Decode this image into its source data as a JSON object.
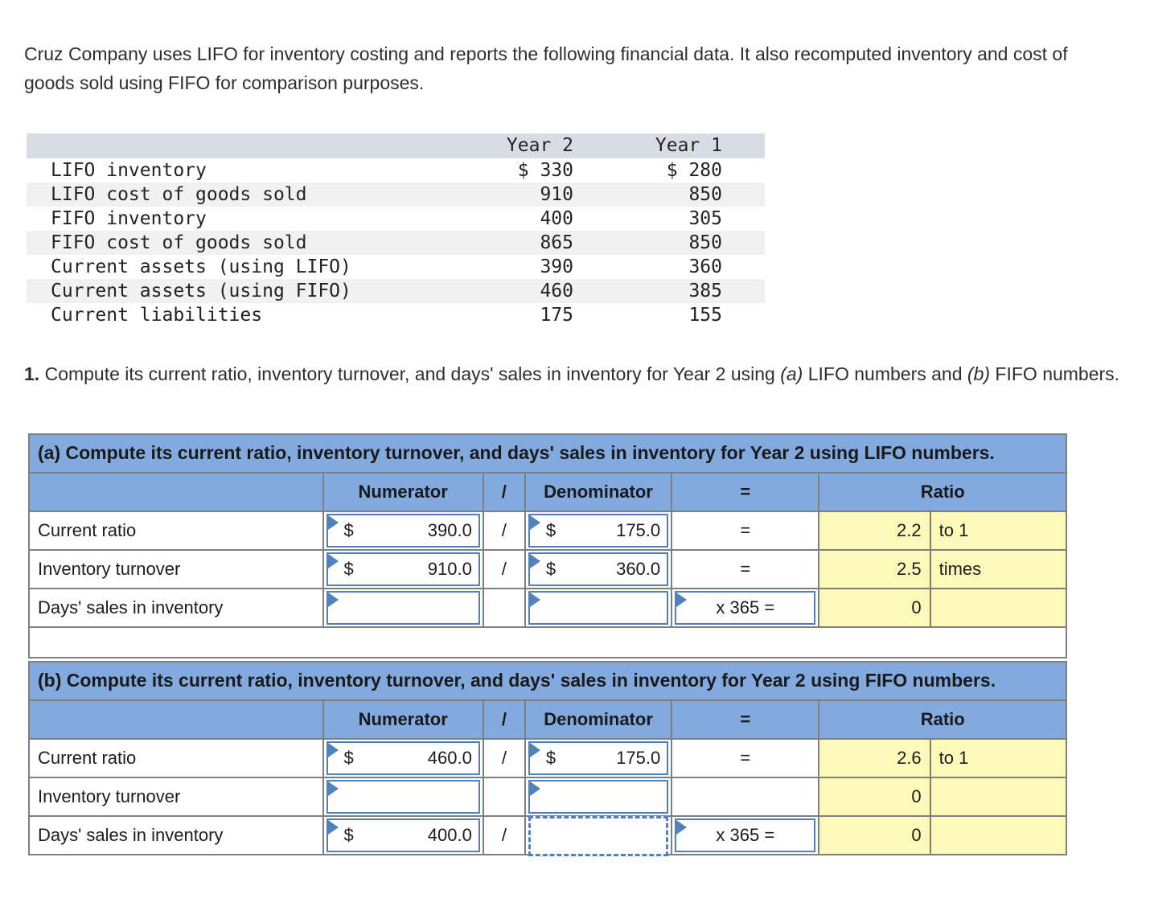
{
  "intro": "Cruz Company uses LIFO for inventory costing and reports the following financial data. It also recomputed inventory and cost of goods sold using FIFO for comparison purposes.",
  "data_table": {
    "col_headers": {
      "year2": "Year 2",
      "year1": "Year 1"
    },
    "rows": [
      {
        "label": "LIFO inventory",
        "year2": "$ 330",
        "year1": "$ 280"
      },
      {
        "label": "LIFO cost of goods sold",
        "year2": "910",
        "year1": "850"
      },
      {
        "label": "FIFO inventory",
        "year2": "400",
        "year1": "305"
      },
      {
        "label": "FIFO cost of goods sold",
        "year2": "865",
        "year1": "850"
      },
      {
        "label": "Current assets (using LIFO)",
        "year2": "390",
        "year1": "360"
      },
      {
        "label": "Current assets (using FIFO)",
        "year2": "460",
        "year1": "385"
      },
      {
        "label": "Current liabilities",
        "year2": "175",
        "year1": "155"
      }
    ]
  },
  "question": {
    "num": "1.",
    "part1": " Compute its current ratio, inventory turnover, and days' sales in inventory for Year 2 using ",
    "a": "(a)",
    "part2": " LIFO numbers and ",
    "b": "(b)",
    "part3": " FIFO numbers."
  },
  "worksheets": [
    {
      "title": "(a) Compute its current ratio, inventory turnover, and days' sales in inventory for Year 2 using LIFO numbers.",
      "columns": {
        "numerator": "Numerator",
        "slash": "/",
        "denominator": "Denominator",
        "equals": "=",
        "ratio": "Ratio"
      },
      "x365_label": "x 365 =",
      "rows": [
        {
          "label": "Current ratio",
          "num_prefix": "$",
          "num_value": "390.0",
          "slash": "/",
          "den_prefix": "$",
          "den_value": "175.0",
          "equals": "=",
          "ratio_value": "2.2",
          "ratio_unit": "to 1"
        },
        {
          "label": "Inventory turnover",
          "num_prefix": "$",
          "num_value": "910.0",
          "slash": "/",
          "den_prefix": "$",
          "den_value": "360.0",
          "equals": "=",
          "ratio_value": "2.5",
          "ratio_unit": "times"
        },
        {
          "label": "Days' sales in inventory",
          "num_prefix": "",
          "num_value": "",
          "slash": "",
          "den_prefix": "",
          "den_value": "",
          "equals": "",
          "ratio_value": "0",
          "ratio_unit": ""
        }
      ]
    },
    {
      "title": "(b) Compute its current ratio, inventory turnover, and days' sales in inventory for Year 2 using FIFO numbers.",
      "columns": {
        "numerator": "Numerator",
        "slash": "/",
        "denominator": "Denominator",
        "equals": "=",
        "ratio": "Ratio"
      },
      "x365_label": "x 365 =",
      "rows": [
        {
          "label": "Current ratio",
          "num_prefix": "$",
          "num_value": "460.0",
          "slash": "/",
          "den_prefix": "$",
          "den_value": "175.0",
          "equals": "=",
          "ratio_value": "2.6",
          "ratio_unit": "to 1"
        },
        {
          "label": "Inventory turnover",
          "num_prefix": "",
          "num_value": "",
          "slash": "",
          "den_prefix": "",
          "den_value": "",
          "equals": "",
          "ratio_value": "0",
          "ratio_unit": ""
        },
        {
          "label": "Days' sales in inventory",
          "num_prefix": "$",
          "num_value": "400.0",
          "slash": "/",
          "den_prefix": "",
          "den_value": "",
          "equals": "",
          "ratio_value": "0",
          "ratio_unit": ""
        }
      ]
    }
  ],
  "colors": {
    "worksheet_header_blue": "#83aadf",
    "input_border_blue": "#4f81bd",
    "answer_yellow": "#fdfab9",
    "data_header_gray": "#d8dce4",
    "row_alt_gray": "#f1f1f2",
    "grid_gray": "#7f7f7f"
  }
}
